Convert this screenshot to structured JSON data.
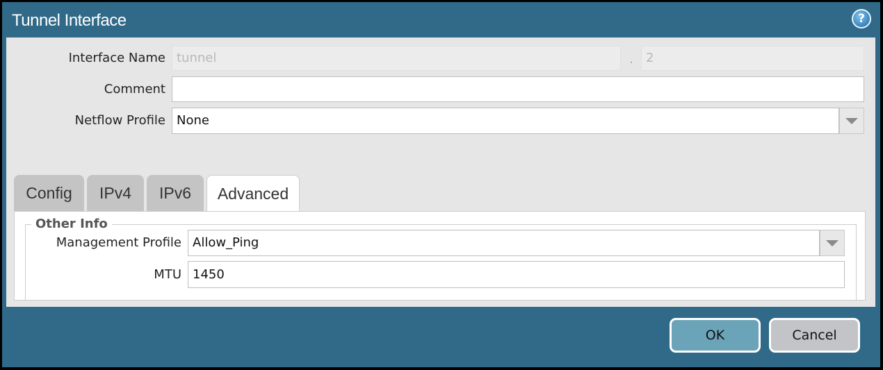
{
  "dialog": {
    "title": "Tunnel Interface",
    "help_icon": "help-icon"
  },
  "form": {
    "interface_name": {
      "label": "Interface Name",
      "value": "tunnel",
      "separator": ".",
      "suffix": "2"
    },
    "comment": {
      "label": "Comment",
      "value": ""
    },
    "netflow_profile": {
      "label": "Netflow Profile",
      "value": "None"
    }
  },
  "tabs": [
    {
      "label": "Config"
    },
    {
      "label": "IPv4"
    },
    {
      "label": "IPv6"
    },
    {
      "label": "Advanced",
      "active": true
    }
  ],
  "advanced": {
    "section_title": "Other Info",
    "management_profile": {
      "label": "Management Profile",
      "value": "Allow_Ping"
    },
    "mtu": {
      "label": "MTU",
      "value": "1450"
    }
  },
  "buttons": {
    "ok": "OK",
    "cancel": "Cancel"
  },
  "colors": {
    "titlebar": "#306a88",
    "ok_button": "#6ba4b8",
    "cancel_button": "#c2c4c8"
  }
}
